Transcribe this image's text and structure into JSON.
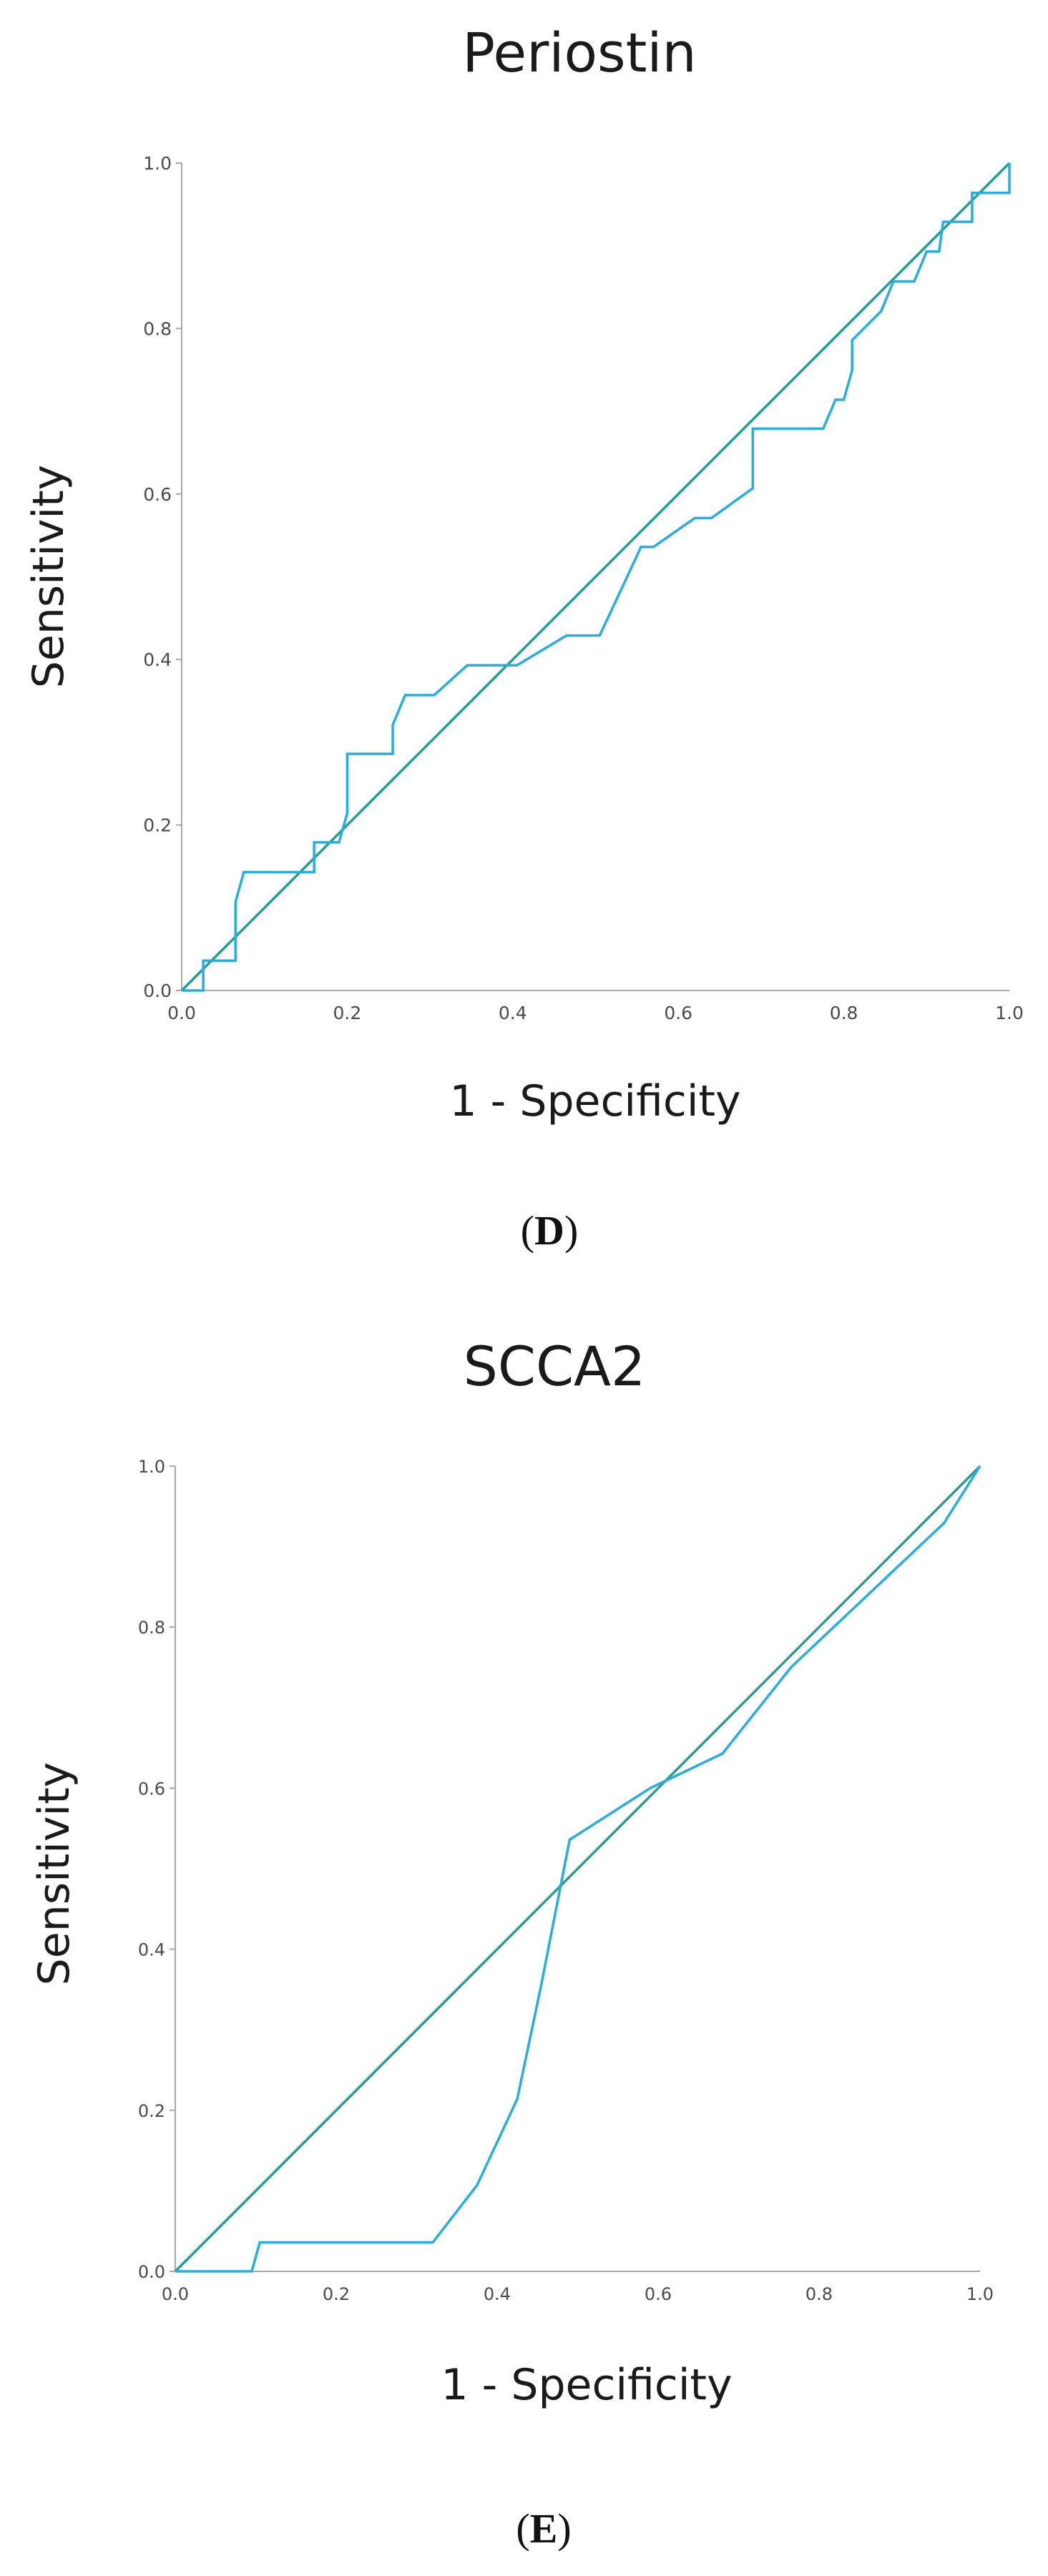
{
  "colors": {
    "roc_curve": "#26aee0",
    "reference_line": "#2e9b8f",
    "axis": "#a8a8a8",
    "text": "#1a1a1a"
  },
  "chart_data": [
    {
      "type": "line",
      "title": "Periostin",
      "xlabel": "1 - Specificity",
      "ylabel": "Sensitivity",
      "xlim": [
        0,
        1
      ],
      "ylim": [
        0,
        1
      ],
      "xticks": [
        "0.0",
        "0.2",
        "0.4",
        "0.6",
        "0.8",
        "1.0"
      ],
      "yticks": [
        "0.0",
        "0.2",
        "0.4",
        "0.6",
        "0.8",
        "1.0"
      ],
      "panel_open": "(",
      "panel_letter": "D",
      "panel_close": ")",
      "grid": false,
      "series": [
        {
          "name": "ROC curve",
          "x": [
            0,
            0.026,
            0.026,
            0.065,
            0.065,
            0.075,
            0.16,
            0.16,
            0.19,
            0.2,
            0.2,
            0.255,
            0.255,
            0.27,
            0.305,
            0.345,
            0.405,
            0.465,
            0.505,
            0.555,
            0.57,
            0.62,
            0.64,
            0.69,
            0.69,
            0.775,
            0.79,
            0.8,
            0.81,
            0.81,
            0.845,
            0.86,
            0.885,
            0.9,
            0.915,
            0.92,
            0.935,
            0.955,
            0.955,
            1.0,
            1.0
          ],
          "y": [
            0,
            0,
            0.036,
            0.036,
            0.107,
            0.143,
            0.143,
            0.179,
            0.179,
            0.214,
            0.286,
            0.286,
            0.321,
            0.357,
            0.357,
            0.393,
            0.393,
            0.429,
            0.429,
            0.536,
            0.536,
            0.571,
            0.571,
            0.607,
            0.679,
            0.679,
            0.714,
            0.714,
            0.75,
            0.786,
            0.821,
            0.857,
            0.857,
            0.893,
            0.893,
            0.929,
            0.929,
            0.929,
            0.964,
            0.964,
            1.0
          ]
        },
        {
          "name": "Reference line",
          "x": [
            0,
            1
          ],
          "y": [
            0,
            1
          ]
        }
      ]
    },
    {
      "type": "line",
      "title": "SCCA2",
      "xlabel": "1 - Specificity",
      "ylabel": "Sensitivity",
      "xlim": [
        0,
        1
      ],
      "ylim": [
        0,
        1
      ],
      "xticks": [
        "0.0",
        "0.2",
        "0.4",
        "0.6",
        "0.8",
        "1.0"
      ],
      "yticks": [
        "0.0",
        "0.2",
        "0.4",
        "0.6",
        "0.8",
        "1.0"
      ],
      "panel_open": "(",
      "panel_letter": "E",
      "panel_close": ")",
      "grid": false,
      "series": [
        {
          "name": "ROC curve",
          "x": [
            0,
            0.095,
            0.105,
            0.32,
            0.375,
            0.425,
            0.455,
            0.49,
            0.59,
            0.68,
            0.765,
            0.955,
            1.0
          ],
          "y": [
            0,
            0,
            0.036,
            0.036,
            0.107,
            0.214,
            0.357,
            0.536,
            0.6,
            0.643,
            0.75,
            0.929,
            1.0
          ]
        },
        {
          "name": "Reference line",
          "x": [
            0,
            1
          ],
          "y": [
            0,
            1
          ]
        }
      ]
    }
  ]
}
